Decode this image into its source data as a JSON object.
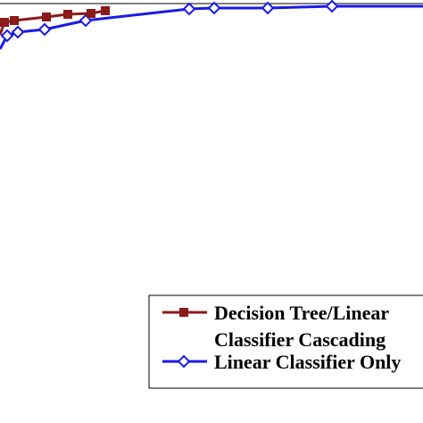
{
  "chart_data": {
    "type": "line",
    "title": "",
    "xlabel": "",
    "ylabel": "",
    "grid": false,
    "legend_position": "bottom-right",
    "series": [
      {
        "name": "Decision Tree/Linear Classifier Cascading",
        "legend_lines": [
          "Decision Tree/Linear",
          "Classifier Cascading"
        ],
        "color": "#8b1a1a",
        "marker": "square",
        "points": [
          [
            0,
            39
          ],
          [
            5,
            25
          ],
          [
            16,
            23
          ],
          [
            52,
            19
          ],
          [
            76,
            16
          ],
          [
            102,
            15
          ],
          [
            118,
            12
          ]
        ]
      },
      {
        "name": "Linear Classifier Only",
        "legend_lines": [
          "Linear Classifier Only"
        ],
        "color": "#1a1ae6",
        "marker": "diamond",
        "points": [
          [
            0,
            55
          ],
          [
            8,
            40
          ],
          [
            20,
            36
          ],
          [
            50,
            33
          ],
          [
            96,
            23
          ],
          [
            212,
            10
          ],
          [
            240,
            9
          ],
          [
            300,
            9
          ],
          [
            372,
            7
          ],
          [
            474,
            7
          ]
        ]
      }
    ]
  }
}
